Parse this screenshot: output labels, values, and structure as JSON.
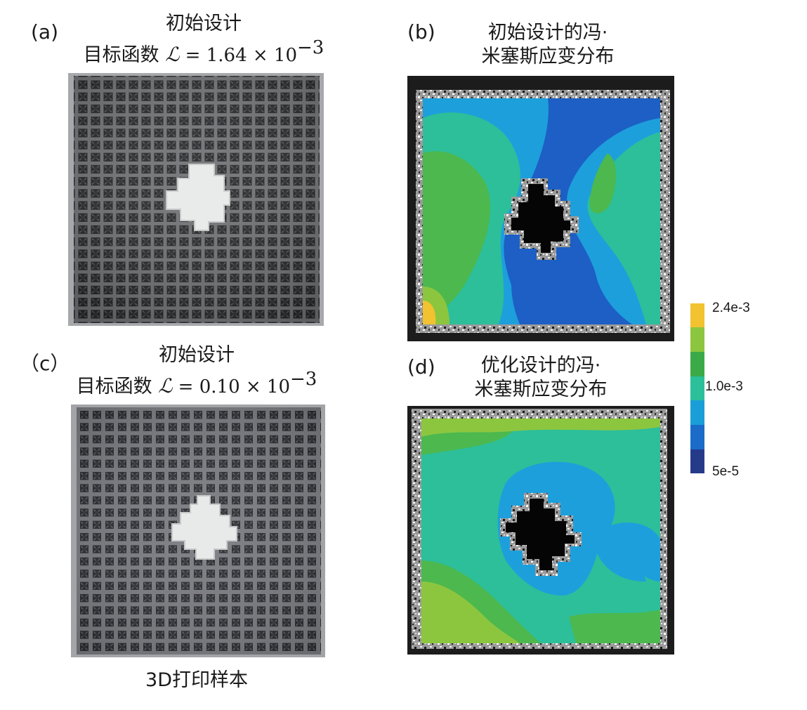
{
  "panels": {
    "a": {
      "tag": "(a)",
      "title_line1": "初始设计",
      "title_line2_prefix": "目标函数 ",
      "symbol": "ℒ",
      "formula_rest": " = 1.64 × 10",
      "exponent": "−3"
    },
    "b": {
      "tag": "(b)",
      "title_line1": "初始设计的冯·",
      "title_line2": "米塞斯应变分布"
    },
    "c": {
      "tag": "（c）",
      "title_line1": "初始设计",
      "title_line2_prefix": "目标函数 ",
      "symbol": "ℒ",
      "formula_rest": " = 0.10 × 10",
      "exponent": "−3"
    },
    "d": {
      "tag": "(d)",
      "title_line1": "优化设计的冯·",
      "title_line2": "米塞斯应变分布"
    }
  },
  "caption": "3D打印样本",
  "colorbar": {
    "labels": [
      "2.4e-3",
      "1.0e-3",
      "5e-5"
    ],
    "colors": [
      "#f2c230",
      "#8cc63f",
      "#3aaa48",
      "#2bbf9a",
      "#1a9ed8",
      "#1a6cc8",
      "#263a8a"
    ]
  }
}
